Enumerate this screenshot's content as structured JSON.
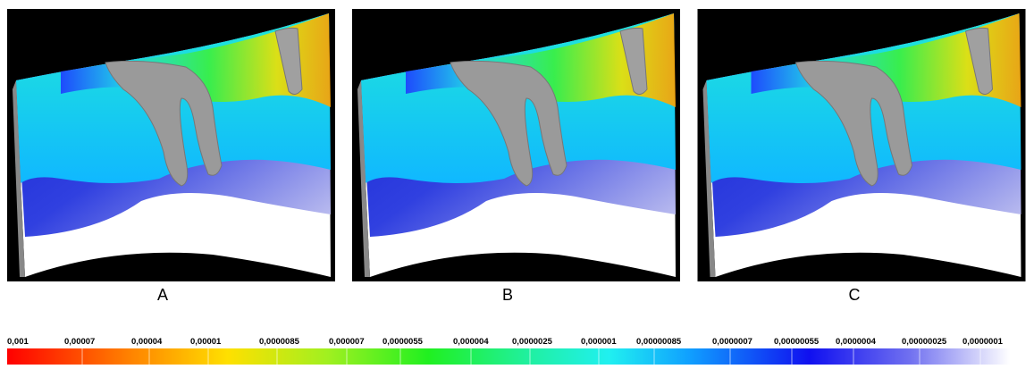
{
  "panels": [
    {
      "label": "A"
    },
    {
      "label": "B"
    },
    {
      "label": "C"
    }
  ],
  "scale": {
    "labels": [
      "0,001",
      "0,00007",
      "0,00004",
      "0,00001",
      "0,0000085",
      "0,000007",
      "0,0000055",
      "0,000004",
      "0,0000025",
      "0,000001",
      "0,00000085",
      "0,0000007",
      "0,00000055",
      "0,0000004",
      "0,00000025",
      "0,0000001"
    ]
  }
}
